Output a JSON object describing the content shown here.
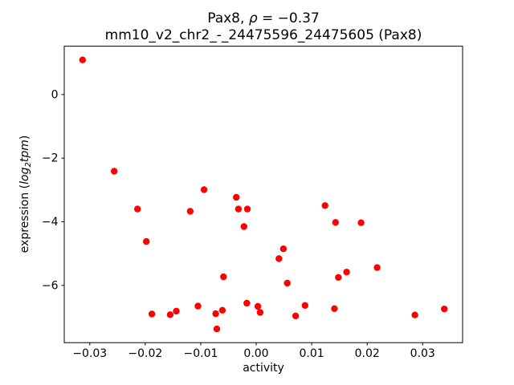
{
  "figure": {
    "title": {
      "prefix": "Pax8, ",
      "rho": "ρ",
      "suffix": " = −0.37"
    },
    "subtitle": "mm10_v2_chr2_-_24475596_24475605 (Pax8)",
    "xlabel": "activity",
    "ylabel": {
      "prefix": "expression (",
      "log": "log",
      "sub": "2",
      "tpm": "tpm",
      "suffix": ")"
    }
  },
  "chart_data": {
    "type": "scatter",
    "title": "Pax8, ρ = −0.37",
    "subtitle": "mm10_v2_chr2_-_24475596_24475605 (Pax8)",
    "xlabel": "activity",
    "ylabel": "expression (log2 tpm)",
    "xlim": [
      -0.0346,
      0.0372
    ],
    "ylim": [
      -7.8,
      1.52
    ],
    "grid": false,
    "legend": null,
    "xticks": {
      "values": [
        -0.03,
        -0.02,
        -0.01,
        0.0,
        0.01,
        0.02,
        0.03
      ],
      "labels": [
        "−0.03",
        "−0.02",
        "−0.01",
        "0.00",
        "0.01",
        "0.02",
        "0.03"
      ]
    },
    "yticks": {
      "values": [
        0,
        -2,
        -4,
        -6
      ],
      "labels": [
        "0",
        "−2",
        "−4",
        "−6"
      ]
    },
    "marker": {
      "color": "#ff0000",
      "radius_px": 4.2
    },
    "points": [
      [
        -0.0313,
        1.09
      ],
      [
        -0.0256,
        -2.41
      ],
      [
        -0.0214,
        -3.6
      ],
      [
        -0.0198,
        -4.62
      ],
      [
        -0.0188,
        -6.9
      ],
      [
        -0.0155,
        -6.92
      ],
      [
        -0.0144,
        -6.81
      ],
      [
        -0.0119,
        -3.67
      ],
      [
        -0.0105,
        -6.65
      ],
      [
        -0.0094,
        -2.99
      ],
      [
        -0.0073,
        -6.89
      ],
      [
        -0.0071,
        -7.37
      ],
      [
        -0.0061,
        -6.78
      ],
      [
        -0.0059,
        -5.73
      ],
      [
        -0.0036,
        -3.23
      ],
      [
        -0.0032,
        -3.6
      ],
      [
        -0.0022,
        -4.15
      ],
      [
        -0.0017,
        -6.56
      ],
      [
        -0.0016,
        -3.6
      ],
      [
        0.0003,
        -6.66
      ],
      [
        0.0007,
        -6.85
      ],
      [
        0.0041,
        -5.16
      ],
      [
        0.0049,
        -4.85
      ],
      [
        0.0056,
        -5.93
      ],
      [
        0.0071,
        -6.96
      ],
      [
        0.0088,
        -6.63
      ],
      [
        0.0124,
        -3.49
      ],
      [
        0.0141,
        -6.73
      ],
      [
        0.0143,
        -4.02
      ],
      [
        0.0148,
        -5.75
      ],
      [
        0.0163,
        -5.58
      ],
      [
        0.0189,
        -4.03
      ],
      [
        0.0218,
        -5.44
      ],
      [
        0.0286,
        -6.93
      ],
      [
        0.0339,
        -6.74
      ]
    ]
  }
}
